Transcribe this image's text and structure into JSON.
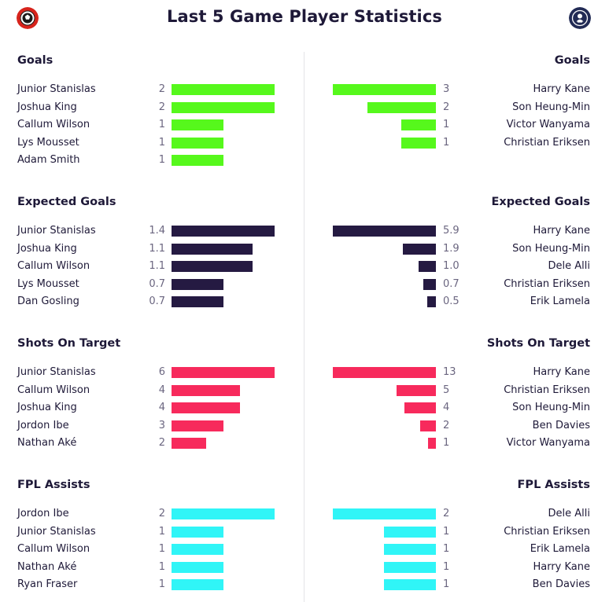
{
  "header": {
    "title": "Last 5 Game Player Statistics",
    "left_badge_icon": "red-cherry-crest-icon",
    "right_badge_icon": "navy-cockerel-crest-icon"
  },
  "colors": {
    "goals": "#56f81c",
    "expected_goals": "#251a42",
    "shots_on_target": "#f72a5c",
    "fpl_assists": "#30f5f7",
    "title_text": "#1e1938",
    "value_text": "#6b6680"
  },
  "chart_data": [
    {
      "type": "bar",
      "side": "left",
      "title": "Goals",
      "color": "#56f81c",
      "categories": [
        "Junior Stanislas",
        "Joshua King",
        "Callum Wilson",
        "Lys Mousset",
        "Adam Smith"
      ],
      "values": [
        2,
        2,
        1,
        1,
        1
      ],
      "labels": [
        "2",
        "2",
        "1",
        "1",
        "1"
      ]
    },
    {
      "type": "bar",
      "side": "right",
      "title": "Goals",
      "color": "#56f81c",
      "categories": [
        "Harry Kane",
        "Son Heung-Min",
        "Victor Wanyama",
        "Christian Eriksen"
      ],
      "values": [
        3,
        2,
        1,
        1
      ],
      "labels": [
        "3",
        "2",
        "1",
        "1"
      ]
    },
    {
      "type": "bar",
      "side": "left",
      "title": "Expected Goals",
      "color": "#251a42",
      "categories": [
        "Junior Stanislas",
        "Joshua King",
        "Callum Wilson",
        "Lys Mousset",
        "Dan Gosling"
      ],
      "values": [
        1.4,
        1.1,
        1.1,
        0.7,
        0.7
      ],
      "labels": [
        "1.4",
        "1.1",
        "1.1",
        "0.7",
        "0.7"
      ]
    },
    {
      "type": "bar",
      "side": "right",
      "title": "Expected Goals",
      "color": "#251a42",
      "categories": [
        "Harry Kane",
        "Son Heung-Min",
        "Dele Alli",
        "Christian Eriksen",
        "Erik Lamela"
      ],
      "values": [
        5.9,
        1.9,
        1.0,
        0.7,
        0.5
      ],
      "labels": [
        "5.9",
        "1.9",
        "1.0",
        "0.7",
        "0.5"
      ]
    },
    {
      "type": "bar",
      "side": "left",
      "title": "Shots On Target",
      "color": "#f72a5c",
      "categories": [
        "Junior Stanislas",
        "Callum Wilson",
        "Joshua King",
        "Jordon Ibe",
        "Nathan Aké"
      ],
      "values": [
        6,
        4,
        4,
        3,
        2
      ],
      "labels": [
        "6",
        "4",
        "4",
        "3",
        "2"
      ]
    },
    {
      "type": "bar",
      "side": "right",
      "title": "Shots On Target",
      "color": "#f72a5c",
      "categories": [
        "Harry Kane",
        "Christian Eriksen",
        "Son Heung-Min",
        "Ben Davies",
        "Victor Wanyama"
      ],
      "values": [
        13,
        5,
        4,
        2,
        1
      ],
      "labels": [
        "13",
        "5",
        "4",
        "2",
        "1"
      ]
    },
    {
      "type": "bar",
      "side": "left",
      "title": "FPL Assists",
      "color": "#30f5f7",
      "categories": [
        "Jordon Ibe",
        "Junior Stanislas",
        "Callum Wilson",
        "Nathan Aké",
        "Ryan Fraser"
      ],
      "values": [
        2,
        1,
        1,
        1,
        1
      ],
      "labels": [
        "2",
        "1",
        "1",
        "1",
        "1"
      ]
    },
    {
      "type": "bar",
      "side": "right",
      "title": "FPL Assists",
      "color": "#30f5f7",
      "categories": [
        "Dele Alli",
        "Christian Eriksen",
        "Erik Lamela",
        "Harry Kane",
        "Ben Davies"
      ],
      "values": [
        2,
        1,
        1,
        1,
        1
      ],
      "labels": [
        "2",
        "1",
        "1",
        "1",
        "1"
      ]
    }
  ]
}
